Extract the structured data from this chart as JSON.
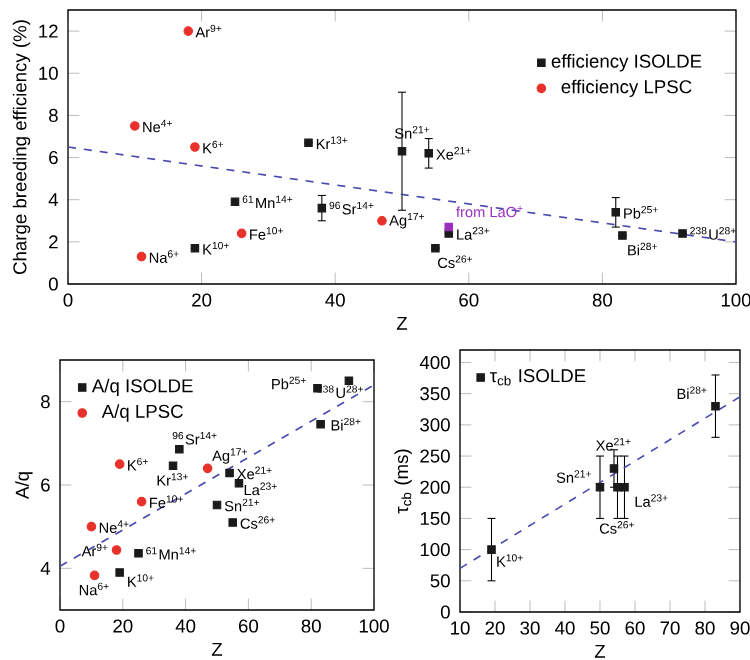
{
  "chart_data": [
    {
      "type": "scatter",
      "xlabel": "Z",
      "ylabel": "Charge breeding efficiency (%)",
      "xlim": [
        0,
        100
      ],
      "ylim": [
        0,
        13
      ],
      "xticks": [
        0,
        20,
        40,
        60,
        80,
        100
      ],
      "yticks": [
        0,
        2,
        4,
        6,
        8,
        10,
        12
      ],
      "legend": "top right",
      "series": [
        {
          "name": "efficiency ISOLDE",
          "color": "#1a1a1a",
          "marker": "square",
          "x": [
            19,
            25,
            36,
            38,
            50,
            54,
            55,
            57,
            82,
            83,
            92
          ],
          "values": [
            1.7,
            3.9,
            6.7,
            3.6,
            6.3,
            6.2,
            1.7,
            2.4,
            3.4,
            2.3,
            2.4
          ],
          "errors": [
            null,
            null,
            null,
            0.6,
            2.8,
            0.7,
            null,
            null,
            0.7,
            null,
            null
          ]
        },
        {
          "name": "efficiency LPSC",
          "color": "#e8312a",
          "marker": "circle",
          "x": [
            10,
            11,
            18,
            19,
            26,
            47
          ],
          "values": [
            7.5,
            1.3,
            12.0,
            6.5,
            2.4,
            3.0
          ]
        },
        {
          "color": "#9b30c0",
          "marker": "square",
          "x": [
            57
          ],
          "values": [
            2.7
          ]
        },
        {
          "type": "line",
          "color": "#4a4ab0",
          "line_style": "dashed",
          "marker": "none",
          "x": [
            0,
            100
          ],
          "values": [
            6.5,
            2.0
          ]
        }
      ],
      "annotations": [
        {
          "text": "K$^{10+}$",
          "x": 19,
          "y": 1.7
        },
        {
          "text": "$^{61}$Mn$^{14+}$",
          "x": 25,
          "y": 3.9
        },
        {
          "text": "Kr$^{13+}$",
          "x": 36,
          "y": 6.7
        },
        {
          "text": "$^{96}$Sr$^{14+}$",
          "x": 38,
          "y": 3.6
        },
        {
          "text": "Sn$^{21+}$",
          "x": 50,
          "y": 6.3
        },
        {
          "text": "Xe$^{21+}$",
          "x": 54,
          "y": 6.2
        },
        {
          "text": "Cs$^{26+}$",
          "x": 55,
          "y": 1.7
        },
        {
          "text": "La$^{23+}$",
          "x": 57,
          "y": 2.4
        },
        {
          "text": "Pb$^{25+}$",
          "x": 82,
          "y": 3.4
        },
        {
          "text": "Bi$^{28+}$",
          "x": 83,
          "y": 2.3
        },
        {
          "text": "$^{238}$U$^{28+}$",
          "x": 92,
          "y": 2.4
        },
        {
          "text": "Ne$^{4+}$",
          "x": 10,
          "y": 7.5
        },
        {
          "text": "Na$^{6+}$",
          "x": 11,
          "y": 1.3
        },
        {
          "text": "Ar$^{9+}$",
          "x": 18,
          "y": 12.0
        },
        {
          "text": "K$^{6+}$",
          "x": 19,
          "y": 6.5
        },
        {
          "text": "Fe$^{10+}$",
          "x": 26,
          "y": 2.4
        },
        {
          "text": "Ag$^{17+}$",
          "x": 47,
          "y": 3.0
        },
        {
          "text": "from LaO$^{+}$",
          "x": 57,
          "y": 2.7
        }
      ]
    },
    {
      "type": "scatter",
      "xlabel": "Z",
      "ylabel": "A/q",
      "xlim": [
        0,
        100
      ],
      "ylim": [
        3,
        9
      ],
      "xticks": [
        0,
        20,
        40,
        60,
        80,
        100
      ],
      "yticks": [
        4,
        6,
        8
      ],
      "legend": "top left",
      "series": [
        {
          "name": "A/q ISOLDE",
          "color": "#1a1a1a",
          "marker": "square",
          "x": [
            19,
            25,
            36,
            38,
            50,
            54,
            55,
            57,
            82,
            83,
            92
          ],
          "values": [
            3.9,
            4.36,
            6.46,
            6.86,
            5.52,
            6.29,
            5.1,
            6.04,
            8.32,
            7.46,
            8.5
          ]
        },
        {
          "name": "A/q LPSC",
          "color": "#e8312a",
          "marker": "circle",
          "x": [
            10,
            11,
            18,
            19,
            26,
            47
          ],
          "values": [
            5.0,
            3.83,
            4.44,
            6.5,
            5.6,
            6.4
          ]
        },
        {
          "type": "line",
          "color": "#4a4ab0",
          "line_style": "dashed",
          "marker": "none",
          "x": [
            0,
            100
          ],
          "values": [
            4.05,
            8.4
          ]
        }
      ],
      "annotations": [
        {
          "text": "K$^{10+}$",
          "x": 19,
          "y": 3.9
        },
        {
          "text": "$^{61}$Mn$^{14+}$",
          "x": 25,
          "y": 4.36
        },
        {
          "text": "Kr$^{13+}$",
          "x": 36,
          "y": 6.46
        },
        {
          "text": "$^{96}$Sr$^{14+}$",
          "x": 38,
          "y": 6.86
        },
        {
          "text": "Sn$^{21+}$",
          "x": 50,
          "y": 5.52
        },
        {
          "text": "Xe$^{21+}$",
          "x": 54,
          "y": 6.29
        },
        {
          "text": "Cs$^{26+}$",
          "x": 55,
          "y": 5.1
        },
        {
          "text": "La$^{23+}$",
          "x": 57,
          "y": 6.04
        },
        {
          "text": "Pb$^{25+}$",
          "x": 82,
          "y": 8.32
        },
        {
          "text": "Bi$^{28+}$",
          "x": 83,
          "y": 7.46
        },
        {
          "text": "$^{238}$U$^{28+}$",
          "x": 92,
          "y": 8.5
        },
        {
          "text": "Ne$^{4+}$",
          "x": 10,
          "y": 5.0
        },
        {
          "text": "Na$^{6+}$",
          "x": 11,
          "y": 3.83
        },
        {
          "text": "Ar$^{9+}$",
          "x": 18,
          "y": 4.44
        },
        {
          "text": "K$^{6+}$",
          "x": 19,
          "y": 6.5
        },
        {
          "text": "Fe$^{10+}$",
          "x": 26,
          "y": 5.6
        },
        {
          "text": "Ag$^{17+}$",
          "x": 47,
          "y": 6.4
        }
      ]
    },
    {
      "type": "scatter",
      "xlabel": "Z",
      "ylabel": "τ$_{cb}$ (ms)",
      "xlim": [
        10,
        90
      ],
      "ylim": [
        0,
        420
      ],
      "xticks": [
        10,
        20,
        30,
        40,
        50,
        60,
        70,
        80,
        90
      ],
      "yticks": [
        0,
        50,
        100,
        150,
        200,
        250,
        300,
        350,
        400
      ],
      "legend": "top left",
      "series": [
        {
          "name": "τ$_{cb}$ ISOLDE",
          "color": "#1a1a1a",
          "marker": "square",
          "x": [
            19,
            50,
            54,
            55,
            57,
            83
          ],
          "values": [
            100,
            200,
            230,
            200,
            200,
            330
          ],
          "errors": [
            50,
            50,
            30,
            50,
            50,
            50
          ]
        },
        {
          "type": "line",
          "color": "#4a4ab0",
          "line_style": "dashed",
          "marker": "none",
          "x": [
            10,
            90
          ],
          "values": [
            70,
            345
          ]
        }
      ],
      "annotations": [
        {
          "text": "K$^{10+}$",
          "x": 19,
          "y": 100
        },
        {
          "text": "Sn$^{21+}$",
          "x": 50,
          "y": 200
        },
        {
          "text": "Xe$^{21+}$",
          "x": 54,
          "y": 230
        },
        {
          "text": "Cs$^{26+}$",
          "x": 55,
          "y": 200
        },
        {
          "text": "La$^{23+}$",
          "x": 57,
          "y": 200
        },
        {
          "text": "Bi$^{28+}$",
          "x": 83,
          "y": 330
        }
      ]
    }
  ]
}
